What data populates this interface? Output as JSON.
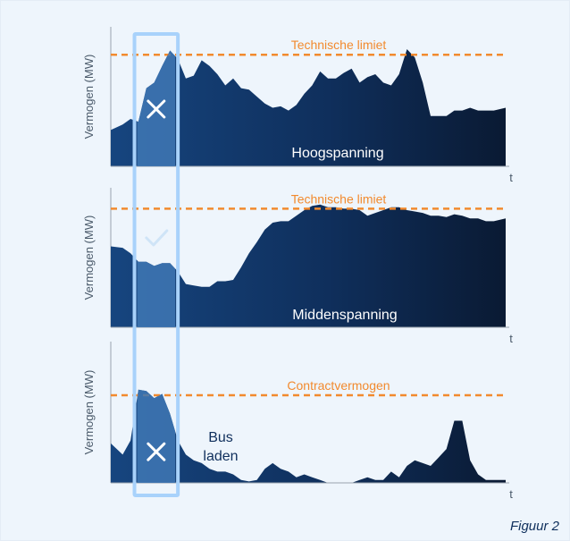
{
  "figure": {
    "label": "Figuur 2"
  },
  "colors": {
    "area_dark": "#0a1a33",
    "area_mid": "#0f2f5c",
    "area_light": "#16457f",
    "limit_line": "#f28a2e",
    "highlight_box": "#a8d2fb",
    "highlight_fill": "#3f78b5",
    "mark_light": "#cfe4f7",
    "text_dark": "#0f2f5c",
    "axis_text": "#4a5a6a"
  },
  "chart_data": [
    {
      "type": "area",
      "name": "Hoogspanning",
      "label": "Hoogspanning",
      "ylabel": "Vermogen (MW)",
      "xlabel": "t",
      "ylim": [
        0,
        100
      ],
      "xlim": [
        0,
        100
      ],
      "limit_line": {
        "label": "Technische limiet",
        "value": 80
      },
      "highlight": {
        "x_start": 6,
        "x_end": 17,
        "status": "exceeded",
        "icon": "cross"
      },
      "series": [
        {
          "x": [
            0,
            3,
            5,
            7,
            9,
            11,
            13,
            15,
            17,
            19,
            21,
            23,
            25,
            27,
            29,
            31,
            33,
            35,
            37,
            39,
            41,
            43,
            45,
            47,
            49,
            51,
            53,
            55,
            57,
            59,
            61,
            63,
            65,
            67,
            69,
            71,
            73,
            75,
            77,
            79,
            81,
            83,
            85,
            87,
            89,
            91,
            93,
            95,
            97,
            100
          ],
          "values": [
            26,
            30,
            34,
            32,
            56,
            60,
            72,
            83,
            77,
            63,
            65,
            76,
            72,
            66,
            58,
            63,
            56,
            55,
            50,
            45,
            42,
            43,
            40,
            44,
            52,
            58,
            68,
            63,
            63,
            67,
            70,
            60,
            64,
            66,
            60,
            58,
            66,
            84,
            78,
            60,
            36,
            36,
            36,
            40,
            40,
            42,
            40,
            40,
            40,
            42
          ]
        }
      ]
    },
    {
      "type": "area",
      "name": "Middenspanning",
      "label": "Middenspanning",
      "ylabel": "Vermogen (MW)",
      "xlabel": "t",
      "ylim": [
        0,
        100
      ],
      "xlim": [
        0,
        100
      ],
      "limit_line": {
        "label": "Technische limiet",
        "value": 85
      },
      "highlight": {
        "x_start": 6,
        "x_end": 17,
        "status": "ok",
        "icon": "check"
      },
      "series": [
        {
          "x": [
            0,
            3,
            5,
            7,
            9,
            11,
            13,
            15,
            17,
            19,
            21,
            23,
            25,
            27,
            29,
            31,
            33,
            35,
            37,
            39,
            41,
            43,
            45,
            47,
            49,
            51,
            53,
            55,
            57,
            59,
            61,
            63,
            65,
            67,
            69,
            71,
            73,
            75,
            77,
            79,
            81,
            83,
            85,
            87,
            89,
            91,
            93,
            95,
            97,
            100
          ],
          "values": [
            58,
            57,
            53,
            47,
            47,
            44,
            46,
            46,
            40,
            31,
            30,
            29,
            29,
            33,
            33,
            34,
            43,
            53,
            61,
            70,
            75,
            76,
            76,
            80,
            84,
            87,
            88,
            86,
            86,
            85,
            85,
            84,
            80,
            82,
            84,
            86,
            86,
            84,
            83,
            82,
            80,
            80,
            79,
            81,
            80,
            78,
            78,
            76,
            76,
            78
          ]
        }
      ]
    },
    {
      "type": "area",
      "name": "Bus laden",
      "label": "Bus\nladen",
      "label_lines": [
        "Bus",
        "laden"
      ],
      "ylabel": "Vermogen (MW)",
      "xlabel": "t",
      "ylim": [
        0,
        100
      ],
      "xlim": [
        0,
        100
      ],
      "limit_line": {
        "label": "Contractvermogen",
        "value": 62
      },
      "highlight": {
        "x_start": 6,
        "x_end": 17,
        "status": "exceeded",
        "icon": "cross"
      },
      "series": [
        {
          "x": [
            0,
            3,
            5,
            7,
            9,
            11,
            13,
            15,
            17,
            19,
            21,
            23,
            25,
            27,
            29,
            31,
            33,
            35,
            37,
            39,
            41,
            43,
            45,
            47,
            49,
            51,
            53,
            55,
            57,
            59,
            61,
            63,
            65,
            67,
            69,
            71,
            73,
            75,
            77,
            79,
            81,
            83,
            85,
            87,
            89,
            91,
            93,
            95,
            97,
            100
          ],
          "values": [
            28,
            20,
            30,
            66,
            65,
            60,
            63,
            49,
            30,
            20,
            16,
            14,
            10,
            8,
            8,
            6,
            2,
            1,
            2,
            10,
            14,
            10,
            8,
            4,
            6,
            4,
            2,
            0,
            0,
            0,
            0,
            2,
            4,
            2,
            2,
            8,
            4,
            12,
            16,
            14,
            12,
            18,
            24,
            44,
            44,
            16,
            6,
            2,
            2,
            2
          ]
        }
      ]
    }
  ]
}
